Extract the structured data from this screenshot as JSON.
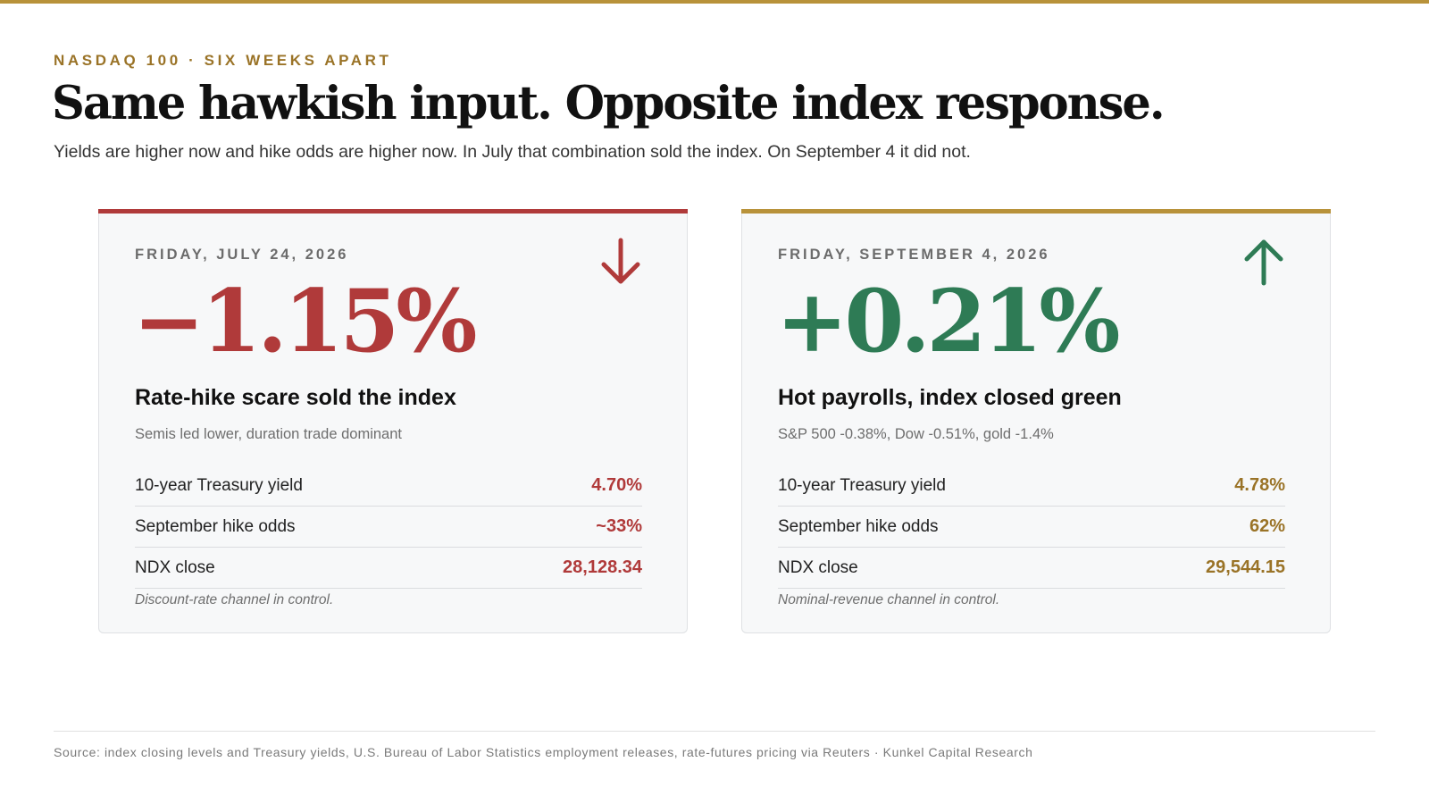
{
  "header": {
    "kicker": "NASDAQ 100 · SIX WEEKS APART",
    "title": "Same hawkish input. Opposite index response.",
    "subtitle": "Yields are higher now and hike odds are higher now. In July that combination sold the index. On September 4 it did not."
  },
  "colors": {
    "gold_accent": "#b8923a",
    "negative_red": "#b03a3a",
    "positive_green": "#2e7b55",
    "value_gold": "#9a7327"
  },
  "cards": [
    {
      "date": "FRIDAY, JULY 24, 2026",
      "arrow_icon": "arrow-down-icon",
      "change": "−1.15%",
      "title": "Rate-hike scare sold the index",
      "subtitle": "Semis led lower, duration trade dominant",
      "rows": [
        {
          "label": "10-year Treasury yield",
          "value": "4.70%"
        },
        {
          "label": "September hike odds",
          "value": "~33%"
        },
        {
          "label": "NDX close",
          "value": "28,128.34"
        }
      ],
      "note": "Discount-rate channel in control."
    },
    {
      "date": "FRIDAY, SEPTEMBER 4, 2026",
      "arrow_icon": "arrow-up-icon",
      "change": "+0.21%",
      "title": "Hot payrolls, index closed green",
      "subtitle": "S&P 500 -0.38%, Dow -0.51%, gold -1.4%",
      "rows": [
        {
          "label": "10-year Treasury yield",
          "value": "4.78%"
        },
        {
          "label": "September hike odds",
          "value": "62%"
        },
        {
          "label": "NDX close",
          "value": "29,544.15"
        }
      ],
      "note": "Nominal-revenue channel in control."
    }
  ],
  "footer": {
    "source": "Source: index closing levels and Treasury yields, U.S. Bureau of Labor Statistics employment releases, rate-futures pricing via Reuters · Kunkel Capital Research"
  }
}
